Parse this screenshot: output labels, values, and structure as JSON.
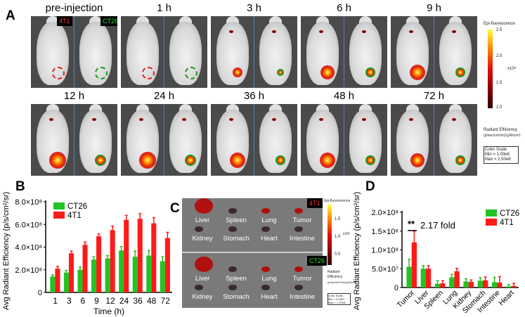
{
  "panel_labels": {
    "a": "A",
    "b": "B",
    "c": "C",
    "d": "D"
  },
  "panel_a": {
    "timepoints": [
      "pre-injection",
      "1 h",
      "3 h",
      "6 h",
      "9 h",
      "12 h",
      "24 h",
      "36 h",
      "48 h",
      "72 h"
    ],
    "tags": {
      "left": "4T1",
      "right": "CT26"
    },
    "colorbar": {
      "title": "Epi-fluorescence",
      "ticks": [
        "2.5",
        "2.0",
        "1.5",
        "1.0"
      ],
      "exponent": "x10⁸",
      "unit_label": "Radiant Efficiency",
      "unit": "(p/sec/cm²/sr)/(μW/cm²)",
      "scale_title": "Color Scale",
      "min": "Min = 1.00e8",
      "max": "Max = 2.50e8"
    }
  },
  "panel_c": {
    "tags": [
      "4T1",
      "CT26"
    ],
    "organs_row1": [
      "Liver",
      "Spleen",
      "Lung",
      "Tumor"
    ],
    "organs_row2": [
      "Kidney",
      "Stomach",
      "Heart",
      "Intestine"
    ],
    "colorbar": {
      "title": "Epi-fluorescence",
      "ticks": [
        "1.5",
        "1.0",
        "0.5"
      ],
      "exponent": "x10⁸",
      "unit_label": "Radiant Efficiency",
      "unit": "(p/sec/cm²/sr)/(μW/cm²)",
      "scale_title": "Color Scale",
      "min": "Min = 2.26e7",
      "max": "Max = 1.97e8"
    }
  },
  "colors": {
    "CT26": "#22c322",
    "4T1": "#ff1a1a"
  },
  "chart_data": [
    {
      "type": "bar",
      "panel": "B",
      "xlabel": "Time (h)",
      "ylabel": "Avg Radiant Efficiency (p/s/cm²/sr)",
      "categories": [
        "1",
        "3",
        "6",
        "9",
        "12",
        "24",
        "36",
        "48",
        "72"
      ],
      "ylim": [
        0,
        800000000.0
      ],
      "yticks": [
        {
          "v": 0,
          "label": "0"
        },
        {
          "v": 200000000.0,
          "label": "2.0×10⁸"
        },
        {
          "v": 400000000.0,
          "label": "4.0×10⁸"
        },
        {
          "v": 600000000.0,
          "label": "6.0×10⁸"
        },
        {
          "v": 800000000.0,
          "label": "8.0×10⁸"
        }
      ],
      "legend": "top-left",
      "series": [
        {
          "name": "CT26",
          "values": [
            140000000.0,
            175000000.0,
            200000000.0,
            290000000.0,
            300000000.0,
            370000000.0,
            315000000.0,
            325000000.0,
            275000000.0
          ],
          "errors": [
            15000000.0,
            20000000.0,
            25000000.0,
            25000000.0,
            25000000.0,
            35000000.0,
            50000000.0,
            45000000.0,
            40000000.0
          ]
        },
        {
          "name": "4T1",
          "values": [
            210000000.0,
            345000000.0,
            420000000.0,
            495000000.0,
            550000000.0,
            640000000.0,
            650000000.0,
            610000000.0,
            480000000.0
          ],
          "errors": [
            20000000.0,
            20000000.0,
            25000000.0,
            20000000.0,
            35000000.0,
            40000000.0,
            45000000.0,
            50000000.0,
            50000000.0
          ]
        }
      ]
    },
    {
      "type": "bar",
      "panel": "D",
      "xlabel": "",
      "ylabel": "Avg Radiant Efficiency (p/s/cm²/sr)",
      "categories": [
        "Tumor",
        "Liver",
        "Spleen",
        "Lung",
        "Kidney",
        "Stomach",
        "Intestine",
        "Heart"
      ],
      "ylim": [
        0,
        200000000.0
      ],
      "yticks": [
        {
          "v": 0,
          "label": "0"
        },
        {
          "v": 50000000.0,
          "label": "5.0×10⁷"
        },
        {
          "v": 100000000.0,
          "label": "1.0×10⁸"
        },
        {
          "v": 150000000.0,
          "label": "1.5×10⁸"
        },
        {
          "v": 200000000.0,
          "label": "2.0×10⁸"
        }
      ],
      "legend": "top-right",
      "annotation": {
        "significance": "**",
        "text": "2.17 fold"
      },
      "series": [
        {
          "name": "CT26",
          "values": [
            55000000.0,
            50000000.0,
            10000000.0,
            27000000.0,
            16000000.0,
            18000000.0,
            14000000.0,
            3000000.0
          ],
          "errors": [
            20000000.0,
            8000000.0,
            8000000.0,
            8000000.0,
            7000000.0,
            8000000.0,
            13000000.0,
            5000000.0
          ]
        },
        {
          "name": "4T1",
          "values": [
            120000000.0,
            50000000.0,
            11000000.0,
            43000000.0,
            15000000.0,
            19000000.0,
            13000000.0,
            4000000.0
          ],
          "errors": [
            30000000.0,
            8000000.0,
            7000000.0,
            8000000.0,
            5000000.0,
            9000000.0,
            16000000.0,
            7000000.0
          ]
        }
      ]
    }
  ]
}
